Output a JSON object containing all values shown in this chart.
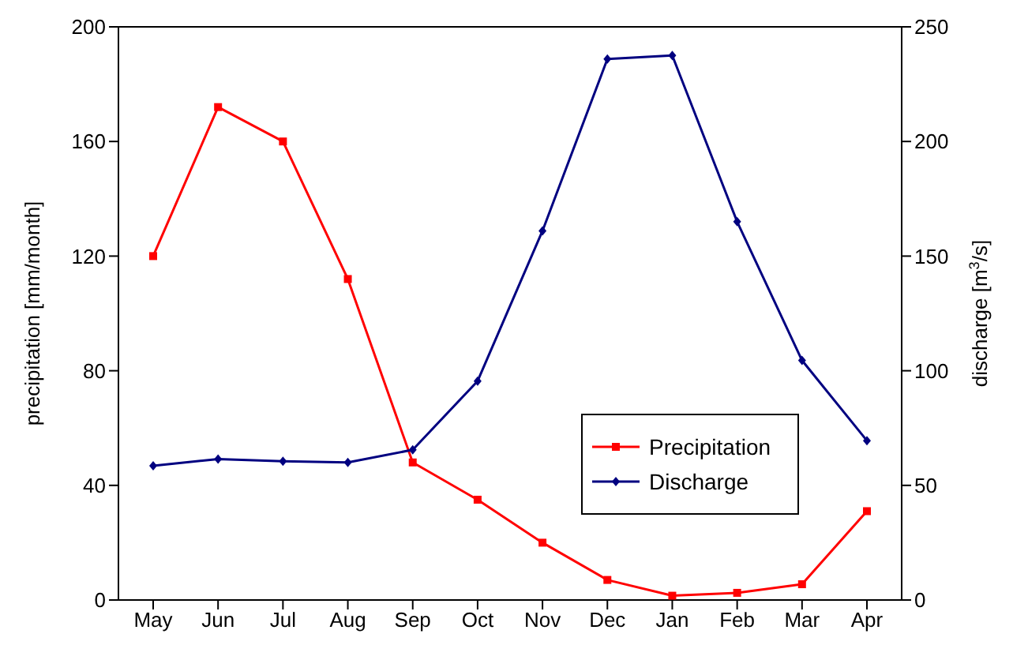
{
  "chart_data": {
    "type": "line",
    "categories": [
      "May",
      "Jun",
      "Jul",
      "Aug",
      "Sep",
      "Oct",
      "Nov",
      "Dec",
      "Jan",
      "Feb",
      "Mar",
      "Apr"
    ],
    "ylabel": "precipitation [mm/month]",
    "y2label": "discharge [m$^{3}$/s]",
    "ylim": [
      0,
      200
    ],
    "yticks": [
      0,
      40,
      80,
      120,
      160,
      200
    ],
    "y2lim": [
      0,
      250
    ],
    "y2ticks": [
      0,
      50,
      100,
      150,
      200,
      250
    ],
    "grid": false,
    "legend": "bottom right",
    "series": [
      {
        "name": "Precipitation",
        "color": "#ff0000",
        "marker": "square",
        "values": [
          120,
          172,
          160,
          112,
          48,
          35,
          20,
          7,
          1.5,
          2.5,
          5.5,
          31
        ]
      },
      {
        "name": "Discharge",
        "color": "#000080",
        "marker": "diamond",
        "axis": "y2",
        "values": [
          58.5,
          61.5,
          60.5,
          60,
          65.5,
          95.5,
          161,
          236,
          237.5,
          165,
          104.5,
          69.5
        ]
      }
    ]
  }
}
